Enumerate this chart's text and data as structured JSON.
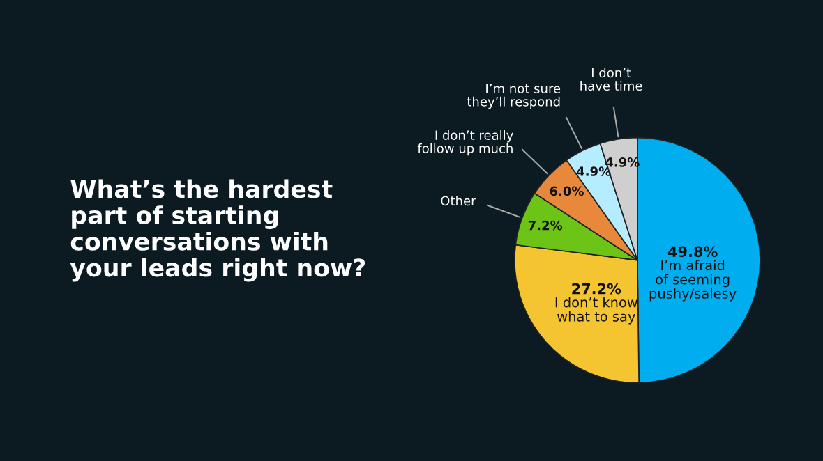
{
  "chart_data": {
    "type": "pie",
    "title": "What’s the hardest\npart of starting\nconversations with\nyour leads right now?",
    "categories": [
      "I’m afraid\nof seeming\npushy/salesy",
      "I don’t know\nwhat to say",
      "Other",
      "I don’t really\nfollow up much",
      "I’m not sure\nthey’ll respond",
      "I don’t\nhave time"
    ],
    "values": [
      49.8,
      27.2,
      7.2,
      6.0,
      4.9,
      4.9
    ],
    "colors": [
      "#00aeef",
      "#f5c431",
      "#6cc417",
      "#e8883a",
      "#b5ecff",
      "#cfcfcf"
    ],
    "value_labels": [
      "49.8%",
      "27.2%",
      "7.2%",
      "6.0%",
      "4.9%",
      "4.9%"
    ]
  }
}
